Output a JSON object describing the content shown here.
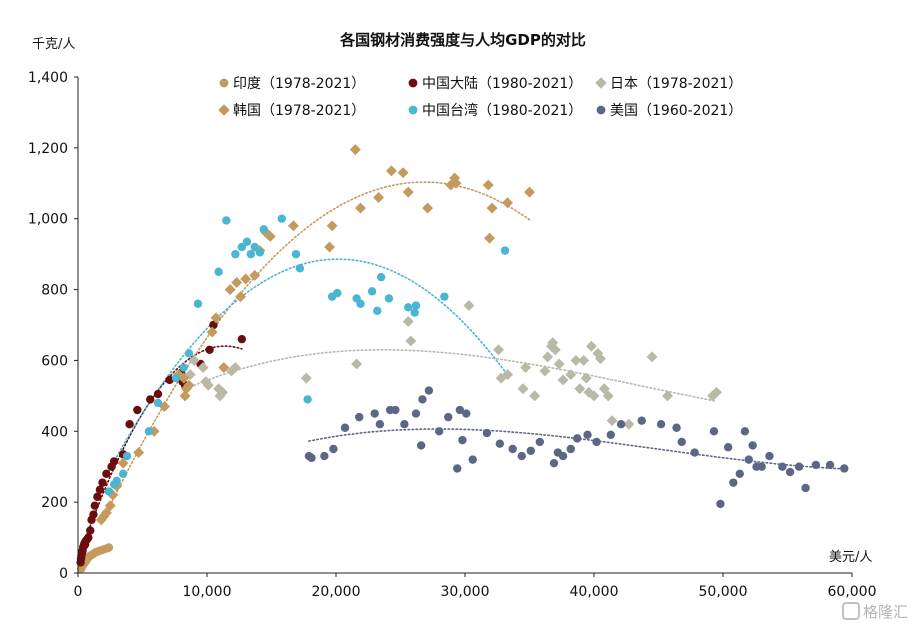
{
  "chart_data": {
    "type": "scatter",
    "title": "各国钢材消费强度与人均GDP的对比",
    "ylabel": "千克/人",
    "xlabel": "美元/人",
    "xlim": [
      0,
      60000
    ],
    "ylim": [
      0,
      1400
    ],
    "x_ticks": [
      0,
      10000,
      20000,
      30000,
      40000,
      50000,
      60000
    ],
    "x_tick_labels": [
      "0",
      "10,000",
      "20,000",
      "30,000",
      "40,000",
      "50,000",
      "60,000"
    ],
    "y_ticks": [
      0,
      200,
      400,
      600,
      800,
      1000,
      1200,
      1400
    ],
    "y_tick_labels": [
      "0",
      "200",
      "400",
      "600",
      "800",
      "1,000",
      "1,200",
      "1,400"
    ],
    "grid": false,
    "legend_position": "top",
    "series": [
      {
        "name": "印度（1978-2021）",
        "marker": "circle",
        "color": "#c49a5e",
        "trend": "none",
        "points": [
          [
            250,
            12
          ],
          [
            270,
            15
          ],
          [
            290,
            17
          ],
          [
            300,
            19
          ],
          [
            320,
            21
          ],
          [
            350,
            23
          ],
          [
            380,
            22
          ],
          [
            400,
            24
          ],
          [
            430,
            25
          ],
          [
            460,
            27
          ],
          [
            500,
            28
          ],
          [
            540,
            30
          ],
          [
            580,
            33
          ],
          [
            620,
            35
          ],
          [
            660,
            37
          ],
          [
            700,
            39
          ],
          [
            750,
            42
          ],
          [
            800,
            44
          ],
          [
            860,
            46
          ],
          [
            920,
            48
          ],
          [
            1000,
            50
          ],
          [
            1100,
            52
          ],
          [
            1200,
            54
          ],
          [
            1350,
            58
          ],
          [
            1500,
            60
          ],
          [
            1600,
            62
          ],
          [
            1800,
            64
          ],
          [
            1950,
            66
          ],
          [
            2100,
            68
          ],
          [
            2300,
            70
          ],
          [
            2400,
            72
          ]
        ]
      },
      {
        "name": "中国大陆（1980-2021）",
        "marker": "circle",
        "color": "#6b0d0d",
        "trend": "dotted",
        "points": [
          [
            200,
            30
          ],
          [
            230,
            40
          ],
          [
            260,
            48
          ],
          [
            300,
            55
          ],
          [
            350,
            62
          ],
          [
            400,
            72
          ],
          [
            450,
            78
          ],
          [
            500,
            84
          ],
          [
            550,
            80
          ],
          [
            600,
            90
          ],
          [
            700,
            95
          ],
          [
            800,
            100
          ],
          [
            950,
            120
          ],
          [
            1050,
            150
          ],
          [
            1200,
            165
          ],
          [
            1300,
            190
          ],
          [
            1500,
            215
          ],
          [
            1700,
            235
          ],
          [
            1900,
            255
          ],
          [
            2200,
            280
          ],
          [
            2600,
            300
          ],
          [
            2800,
            315
          ],
          [
            3500,
            335
          ],
          [
            4000,
            420
          ],
          [
            4600,
            460
          ],
          [
            5600,
            490
          ],
          [
            6200,
            505
          ],
          [
            7100,
            545
          ],
          [
            8000,
            565
          ],
          [
            8100,
            540
          ],
          [
            8300,
            530
          ],
          [
            9500,
            590
          ],
          [
            10200,
            630
          ],
          [
            10500,
            700
          ],
          [
            12700,
            660
          ]
        ]
      },
      {
        "name": "日本（1978-2021）",
        "marker": "diamond",
        "color": "#bbb8a8",
        "trend": "dotted",
        "points": [
          [
            8700,
            560
          ],
          [
            9000,
            600
          ],
          [
            9700,
            580
          ],
          [
            9900,
            540
          ],
          [
            10100,
            530
          ],
          [
            10900,
            520
          ],
          [
            11000,
            500
          ],
          [
            11200,
            510
          ],
          [
            11900,
            570
          ],
          [
            12200,
            580
          ],
          [
            17700,
            550
          ],
          [
            21600,
            590
          ],
          [
            25600,
            710
          ],
          [
            25800,
            655
          ],
          [
            30300,
            755
          ],
          [
            32600,
            630
          ],
          [
            32800,
            550
          ],
          [
            33300,
            560
          ],
          [
            34500,
            520
          ],
          [
            34700,
            580
          ],
          [
            35400,
            500
          ],
          [
            36200,
            570
          ],
          [
            36400,
            610
          ],
          [
            36700,
            640
          ],
          [
            36800,
            650
          ],
          [
            37000,
            630
          ],
          [
            37300,
            590
          ],
          [
            37600,
            545
          ],
          [
            38200,
            560
          ],
          [
            38600,
            600
          ],
          [
            38900,
            520
          ],
          [
            39200,
            600
          ],
          [
            39400,
            550
          ],
          [
            39600,
            510
          ],
          [
            39800,
            640
          ],
          [
            40000,
            500
          ],
          [
            40300,
            620
          ],
          [
            40500,
            605
          ],
          [
            40800,
            520
          ],
          [
            41100,
            500
          ],
          [
            41400,
            430
          ],
          [
            42700,
            420
          ],
          [
            44500,
            610
          ],
          [
            45700,
            500
          ],
          [
            49200,
            500
          ],
          [
            49500,
            510
          ]
        ]
      },
      {
        "name": "韩国（1978-2021）",
        "marker": "diamond",
        "color": "#c49a5e",
        "trend": "dotted",
        "points": [
          [
            1800,
            150
          ],
          [
            2000,
            160
          ],
          [
            2200,
            170
          ],
          [
            2500,
            190
          ],
          [
            2700,
            220
          ],
          [
            3000,
            245
          ],
          [
            3500,
            310
          ],
          [
            4700,
            340
          ],
          [
            5900,
            400
          ],
          [
            6700,
            470
          ],
          [
            7800,
            560
          ],
          [
            8200,
            550
          ],
          [
            8300,
            500
          ],
          [
            8400,
            520
          ],
          [
            8600,
            530
          ],
          [
            10400,
            680
          ],
          [
            10700,
            720
          ],
          [
            11300,
            580
          ],
          [
            11800,
            800
          ],
          [
            12300,
            820
          ],
          [
            12600,
            780
          ],
          [
            13000,
            830
          ],
          [
            13700,
            840
          ],
          [
            14100,
            910
          ],
          [
            14600,
            960
          ],
          [
            14900,
            950
          ],
          [
            16700,
            980
          ],
          [
            19500,
            920
          ],
          [
            19700,
            980
          ],
          [
            21500,
            1195
          ],
          [
            21900,
            1030
          ],
          [
            23300,
            1060
          ],
          [
            24300,
            1135
          ],
          [
            25200,
            1130
          ],
          [
            25600,
            1075
          ],
          [
            27100,
            1030
          ],
          [
            28900,
            1095
          ],
          [
            29200,
            1115
          ],
          [
            29300,
            1100
          ],
          [
            31800,
            1095
          ],
          [
            31900,
            945
          ],
          [
            32100,
            1030
          ],
          [
            33300,
            1045
          ],
          [
            35000,
            1075
          ]
        ]
      },
      {
        "name": "中国台湾（1980-2021）",
        "marker": "circle",
        "color": "#4bb6d2",
        "trend": "dotted",
        "points": [
          [
            2400,
            230
          ],
          [
            2800,
            250
          ],
          [
            3000,
            260
          ],
          [
            3500,
            280
          ],
          [
            3800,
            330
          ],
          [
            5500,
            400
          ],
          [
            6200,
            480
          ],
          [
            7600,
            550
          ],
          [
            8200,
            580
          ],
          [
            8600,
            620
          ],
          [
            9300,
            760
          ],
          [
            10900,
            850
          ],
          [
            11500,
            995
          ],
          [
            12200,
            900
          ],
          [
            12700,
            920
          ],
          [
            13100,
            935
          ],
          [
            13400,
            900
          ],
          [
            13700,
            920
          ],
          [
            14100,
            905
          ],
          [
            14400,
            970
          ],
          [
            15800,
            1000
          ],
          [
            16900,
            900
          ],
          [
            17200,
            860
          ],
          [
            17800,
            490
          ],
          [
            19700,
            780
          ],
          [
            20100,
            790
          ],
          [
            21600,
            775
          ],
          [
            21900,
            760
          ],
          [
            22800,
            795
          ],
          [
            23200,
            740
          ],
          [
            23500,
            835
          ],
          [
            24100,
            775
          ],
          [
            25600,
            750
          ],
          [
            26100,
            735
          ],
          [
            26200,
            755
          ],
          [
            28400,
            780
          ],
          [
            33100,
            910
          ]
        ]
      },
      {
        "name": "美国（1960-2021）",
        "marker": "circle",
        "color": "#5d6785",
        "trend": "dotted",
        "points": [
          [
            17900,
            330
          ],
          [
            18100,
            325
          ],
          [
            19100,
            330
          ],
          [
            19800,
            350
          ],
          [
            20700,
            410
          ],
          [
            21800,
            440
          ],
          [
            23000,
            450
          ],
          [
            23400,
            420
          ],
          [
            24200,
            460
          ],
          [
            24600,
            460
          ],
          [
            25300,
            420
          ],
          [
            26200,
            450
          ],
          [
            26600,
            360
          ],
          [
            26700,
            490
          ],
          [
            27200,
            515
          ],
          [
            28000,
            400
          ],
          [
            28700,
            440
          ],
          [
            29400,
            295
          ],
          [
            29600,
            460
          ],
          [
            29800,
            375
          ],
          [
            30100,
            450
          ],
          [
            30600,
            320
          ],
          [
            31700,
            395
          ],
          [
            32700,
            365
          ],
          [
            33700,
            350
          ],
          [
            34400,
            330
          ],
          [
            35100,
            345
          ],
          [
            35800,
            370
          ],
          [
            36900,
            310
          ],
          [
            37200,
            340
          ],
          [
            37600,
            330
          ],
          [
            38200,
            350
          ],
          [
            38700,
            380
          ],
          [
            39500,
            390
          ],
          [
            40200,
            370
          ],
          [
            41300,
            390
          ],
          [
            42100,
            420
          ],
          [
            43700,
            430
          ],
          [
            45200,
            420
          ],
          [
            46400,
            410
          ],
          [
            46800,
            370
          ],
          [
            47800,
            340
          ],
          [
            49300,
            400
          ],
          [
            49800,
            195
          ],
          [
            50400,
            355
          ],
          [
            50800,
            255
          ],
          [
            51300,
            280
          ],
          [
            51700,
            400
          ],
          [
            52000,
            320
          ],
          [
            52300,
            360
          ],
          [
            52600,
            300
          ],
          [
            53000,
            300
          ],
          [
            53600,
            330
          ],
          [
            54600,
            300
          ],
          [
            55200,
            285
          ],
          [
            55900,
            300
          ],
          [
            56400,
            240
          ],
          [
            57200,
            305
          ],
          [
            58300,
            305
          ],
          [
            59400,
            295
          ]
        ]
      }
    ]
  },
  "watermark": {
    "text": "格隆汇"
  }
}
